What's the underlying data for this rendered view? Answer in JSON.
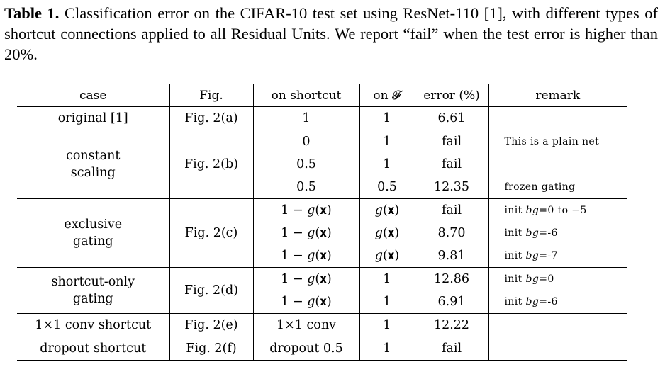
{
  "caption": {
    "label": "Table 1.",
    "text": "Classification error on the CIFAR-10 test set using ResNet-110 [1], with different types of shortcut connections applied to all Residual Units. We report “fail” when the test error is higher than 20%."
  },
  "table": {
    "headers": [
      "case",
      "Fig.",
      "on shortcut",
      "on 𝓕",
      "error (%)",
      "remark"
    ],
    "groups": [
      {
        "case": "original [1]",
        "fig": "Fig. 2(a)",
        "rows": [
          {
            "shortcut": "1",
            "onF": "1",
            "error": "6.61",
            "remark": ""
          }
        ]
      },
      {
        "case": "constant scaling",
        "fig": "Fig. 2(b)",
        "rows": [
          {
            "shortcut": "0",
            "onF": "1",
            "error": "fail",
            "remark": "This is a plain net"
          },
          {
            "shortcut": "0.5",
            "onF": "1",
            "error": "fail",
            "remark": ""
          },
          {
            "shortcut": "0.5",
            "onF": "0.5",
            "error": "12.35",
            "remark": "frozen gating"
          }
        ]
      },
      {
        "case": "exclusive gating",
        "fig": "Fig. 2(c)",
        "rows": [
          {
            "shortcut": "1 − 𝑔(𝐱)",
            "onF": "𝑔(𝐱)",
            "error": "fail",
            "remark": "init 𝑏𝑔=0 to −5"
          },
          {
            "shortcut": "1 − 𝑔(𝐱)",
            "onF": "𝑔(𝐱)",
            "error": "8.70",
            "remark": "init 𝑏𝑔=-6"
          },
          {
            "shortcut": "1 − 𝑔(𝐱)",
            "onF": "𝑔(𝐱)",
            "error": "9.81",
            "remark": "init 𝑏𝑔=-7"
          }
        ]
      },
      {
        "case": "shortcut-only gating",
        "fig": "Fig. 2(d)",
        "rows": [
          {
            "shortcut": "1 − 𝑔(𝐱)",
            "onF": "1",
            "error": "12.86",
            "remark": "init 𝑏𝑔=0"
          },
          {
            "shortcut": "1 − 𝑔(𝐱)",
            "onF": "1",
            "error": "6.91",
            "remark": "init 𝑏𝑔=-6"
          }
        ]
      },
      {
        "case": "1×1 conv shortcut",
        "fig": "Fig. 2(e)",
        "rows": [
          {
            "shortcut": "1×1 conv",
            "onF": "1",
            "error": "12.22",
            "remark": ""
          }
        ]
      },
      {
        "case": "dropout shortcut",
        "fig": "Fig. 2(f)",
        "rows": [
          {
            "shortcut": "dropout 0.5",
            "onF": "1",
            "error": "fail",
            "remark": ""
          }
        ]
      }
    ]
  }
}
